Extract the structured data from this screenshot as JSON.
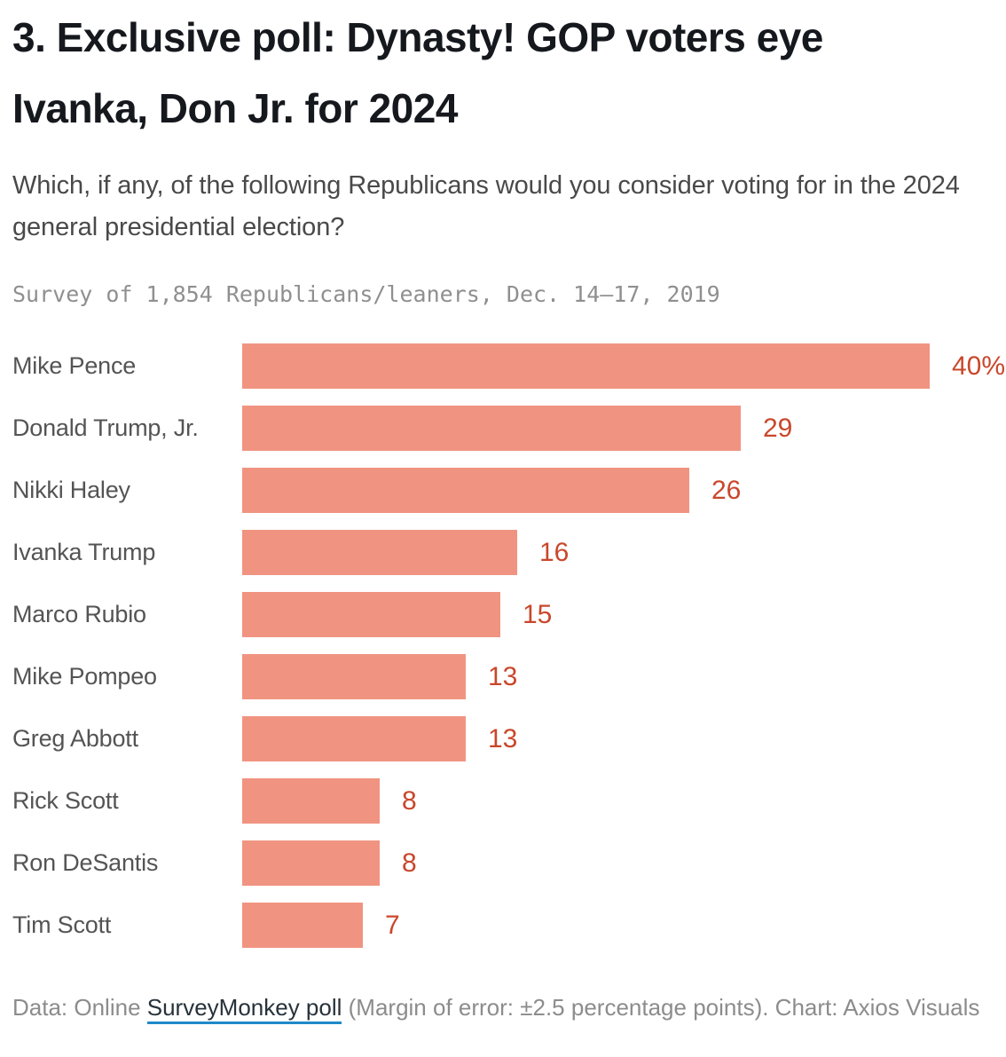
{
  "title": "3. Exclusive poll: Dynasty! GOP voters eye Ivanka, Don Jr. for 2024",
  "subtitle": "Which, if any, of the following Republicans would you consider voting for in the 2024 general presidential election?",
  "survey_note": "Survey of 1,854 Republicans/leaners, Dec. 14–17, 2019",
  "chart_data": {
    "type": "bar",
    "orientation": "horizontal",
    "title": "Which, if any, of the following Republicans would you consider voting for in the 2024 general presidential election?",
    "categories": [
      "Mike Pence",
      "Donald Trump, Jr.",
      "Nikki Haley",
      "Ivanka Trump",
      "Marco Rubio",
      "Mike Pompeo",
      "Greg Abbott",
      "Rick Scott",
      "Ron DeSantis",
      "Tim Scott"
    ],
    "values": [
      40,
      29,
      26,
      16,
      15,
      13,
      13,
      8,
      8,
      7
    ],
    "value_labels": [
      "40%",
      "29",
      "26",
      "16",
      "15",
      "13",
      "13",
      "8",
      "8",
      "7"
    ],
    "xlabel": "",
    "ylabel": "",
    "xlim": [
      0,
      40
    ],
    "grid": false,
    "legend": false,
    "bar_color": "#f09481",
    "value_color": "#c9472b",
    "label_color": "#545454"
  },
  "footer": {
    "prefix": "Data: Online ",
    "link_text": "SurveyMonkey poll",
    "suffix": " (Margin of error: ±2.5 percentage points). Chart: Axios Visuals",
    "link_underline_color": "#2089c9"
  }
}
